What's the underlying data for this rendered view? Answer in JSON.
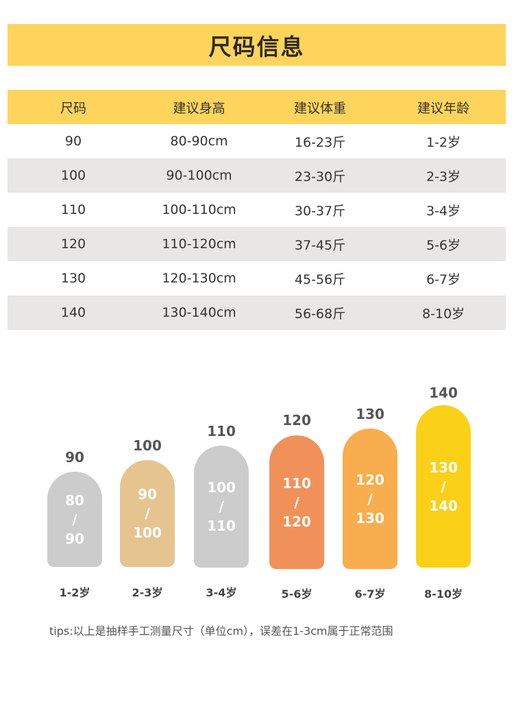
{
  "title": "尺码信息",
  "table": {
    "headers": [
      "尺码",
      "建议身高",
      "建议体重",
      "建议年龄"
    ],
    "rows": [
      [
        "90",
        "80-90cm",
        "16-23斤",
        "1-2岁"
      ],
      [
        "100",
        "90-100cm",
        "23-30斤",
        "2-3岁"
      ],
      [
        "110",
        "100-110cm",
        "30-37斤",
        "3-4岁"
      ],
      [
        "120",
        "110-120cm",
        "37-45斤",
        "5-6岁"
      ],
      [
        "130",
        "120-130cm",
        "45-56斤",
        "6-7岁"
      ],
      [
        "140",
        "130-140cm",
        "56-68斤",
        "8-10岁"
      ]
    ]
  },
  "bars": [
    {
      "size": "90",
      "h1": "80",
      "sep": "/",
      "h2": "90",
      "age": "1-2岁",
      "color": "#cccccc"
    },
    {
      "size": "100",
      "h1": "90",
      "sep": "/",
      "h2": "100",
      "age": "2-3岁",
      "color": "#e6c490"
    },
    {
      "size": "110",
      "h1": "100",
      "sep": "/",
      "h2": "110",
      "age": "3-4岁",
      "color": "#cccccc"
    },
    {
      "size": "120",
      "h1": "110",
      "sep": "/",
      "h2": "120",
      "age": "5-6岁",
      "color": "#f0915a"
    },
    {
      "size": "130",
      "h1": "120",
      "sep": "/",
      "h2": "130",
      "age": "6-7岁",
      "color": "#f8ad4e"
    },
    {
      "size": "140",
      "h1": "130",
      "sep": "/",
      "h2": "140",
      "age": "8-10岁",
      "color": "#fbd019"
    }
  ],
  "tips": "tips:以上是抽样手工测量尺寸（单位cm），误差在1-3cm属于正常范围"
}
